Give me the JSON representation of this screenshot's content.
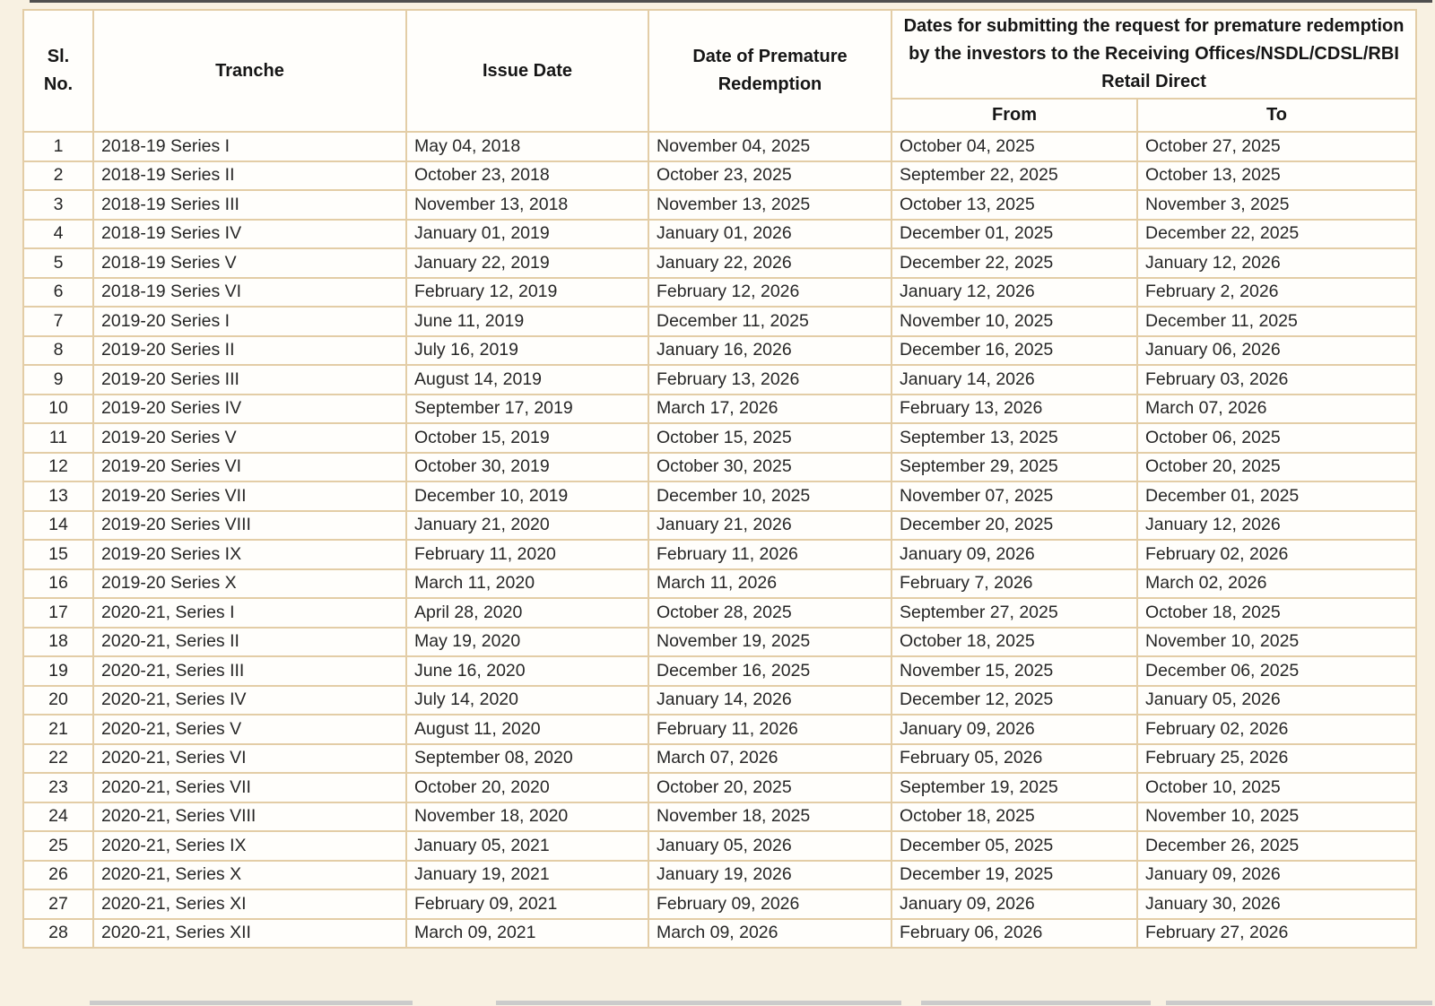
{
  "table": {
    "headers": {
      "sl_no": "Sl.\nNo.",
      "tranche": "Tranche",
      "issue_date": "Issue Date",
      "premature_redemption": "Date of Premature Redemption",
      "submission_group": "Dates for submitting the request for premature redemption by the investors to the Receiving Offices/NSDL/CDSL/RBI Retail Direct",
      "from": "From",
      "to": "To"
    },
    "rows": [
      [
        "1",
        "2018-19 Series I",
        "May 04, 2018",
        "November 04, 2025",
        "October 04, 2025",
        "October 27, 2025"
      ],
      [
        "2",
        "2018-19 Series II",
        "October 23, 2018",
        "October 23, 2025",
        "September 22, 2025",
        "October 13, 2025"
      ],
      [
        "3",
        "2018-19 Series III",
        "November 13, 2018",
        "November 13, 2025",
        "October 13, 2025",
        "November 3, 2025"
      ],
      [
        "4",
        "2018-19 Series IV",
        "January 01, 2019",
        "January 01, 2026",
        "December 01, 2025",
        "December 22, 2025"
      ],
      [
        "5",
        "2018-19 Series V",
        "January 22, 2019",
        "January 22, 2026",
        "December 22, 2025",
        "January 12, 2026"
      ],
      [
        "6",
        "2018-19 Series VI",
        "February 12, 2019",
        "February 12, 2026",
        "January 12, 2026",
        "February 2, 2026"
      ],
      [
        "7",
        "2019-20 Series I",
        "June 11, 2019",
        "December 11, 2025",
        "November 10, 2025",
        "December 11, 2025"
      ],
      [
        "8",
        "2019-20 Series II",
        "July 16, 2019",
        "January 16, 2026",
        "December 16, 2025",
        "January 06, 2026"
      ],
      [
        "9",
        "2019-20 Series III",
        "August 14, 2019",
        "February 13, 2026",
        "January 14, 2026",
        "February 03, 2026"
      ],
      [
        "10",
        "2019-20 Series IV",
        "September 17, 2019",
        "March 17, 2026",
        "February 13, 2026",
        "March 07, 2026"
      ],
      [
        "11",
        "2019-20 Series V",
        "October 15, 2019",
        "October 15, 2025",
        "September 13, 2025",
        "October 06, 2025"
      ],
      [
        "12",
        "2019-20 Series VI",
        "October 30, 2019",
        "October 30, 2025",
        "September 29, 2025",
        "October 20, 2025"
      ],
      [
        "13",
        "2019-20 Series VII",
        "December 10, 2019",
        "December 10, 2025",
        "November 07, 2025",
        "December 01, 2025"
      ],
      [
        "14",
        "2019-20 Series VIII",
        "January 21, 2020",
        "January 21, 2026",
        "December 20, 2025",
        "January 12, 2026"
      ],
      [
        "15",
        "2019-20 Series IX",
        "February 11, 2020",
        "February 11, 2026",
        "January 09, 2026",
        "February 02, 2026"
      ],
      [
        "16",
        "2019-20 Series X",
        "March 11, 2020",
        "March 11, 2026",
        "February 7, 2026",
        "March 02, 2026"
      ],
      [
        "17",
        "2020-21, Series I",
        "April 28, 2020",
        "October 28, 2025",
        "September 27, 2025",
        "October 18, 2025"
      ],
      [
        "18",
        "2020-21, Series II",
        "May 19, 2020",
        "November 19, 2025",
        "October 18, 2025",
        "November 10, 2025"
      ],
      [
        "19",
        "2020-21, Series III",
        "June 16, 2020",
        "December 16, 2025",
        "November 15, 2025",
        "December 06, 2025"
      ],
      [
        "20",
        "2020-21, Series IV",
        "July 14, 2020",
        "January 14, 2026",
        "December 12, 2025",
        "January 05, 2026"
      ],
      [
        "21",
        "2020-21, Series V",
        "August 11, 2020",
        "February 11, 2026",
        "January 09, 2026",
        "February 02, 2026"
      ],
      [
        "22",
        "2020-21, Series VI",
        "September 08, 2020",
        "March 07, 2026",
        "February 05, 2026",
        "February 25, 2026"
      ],
      [
        "23",
        "2020-21, Series VII",
        "October 20, 2020",
        "October 20, 2025",
        "September 19, 2025",
        "October 10, 2025"
      ],
      [
        "24",
        "2020-21, Series VIII",
        "November 18, 2020",
        "November 18, 2025",
        "October 18, 2025",
        "November 10, 2025"
      ],
      [
        "25",
        "2020-21, Series IX",
        "January 05, 2021",
        "January 05, 2026",
        "December 05, 2025",
        "December 26, 2025"
      ],
      [
        "26",
        "2020-21, Series X",
        "January 19, 2021",
        "January 19, 2026",
        "December 19, 2025",
        "January 09, 2026"
      ],
      [
        "27",
        "2020-21, Series XI",
        "February 09, 2021",
        "February 09, 2026",
        "January 09, 2026",
        "January 30, 2026"
      ],
      [
        "28",
        "2020-21, Series XII",
        "March 09, 2021",
        "March 09, 2026",
        "February 06, 2026",
        "February 27, 2026"
      ]
    ]
  },
  "colors": {
    "page_background": "#f8f1e2",
    "cell_background": "#fffefb",
    "border_tan": "#e3cda6",
    "row_divider": "#efe5d1",
    "header_text": "#161616",
    "body_text": "#262626",
    "top_edge_line": "#4f4f4f"
  }
}
